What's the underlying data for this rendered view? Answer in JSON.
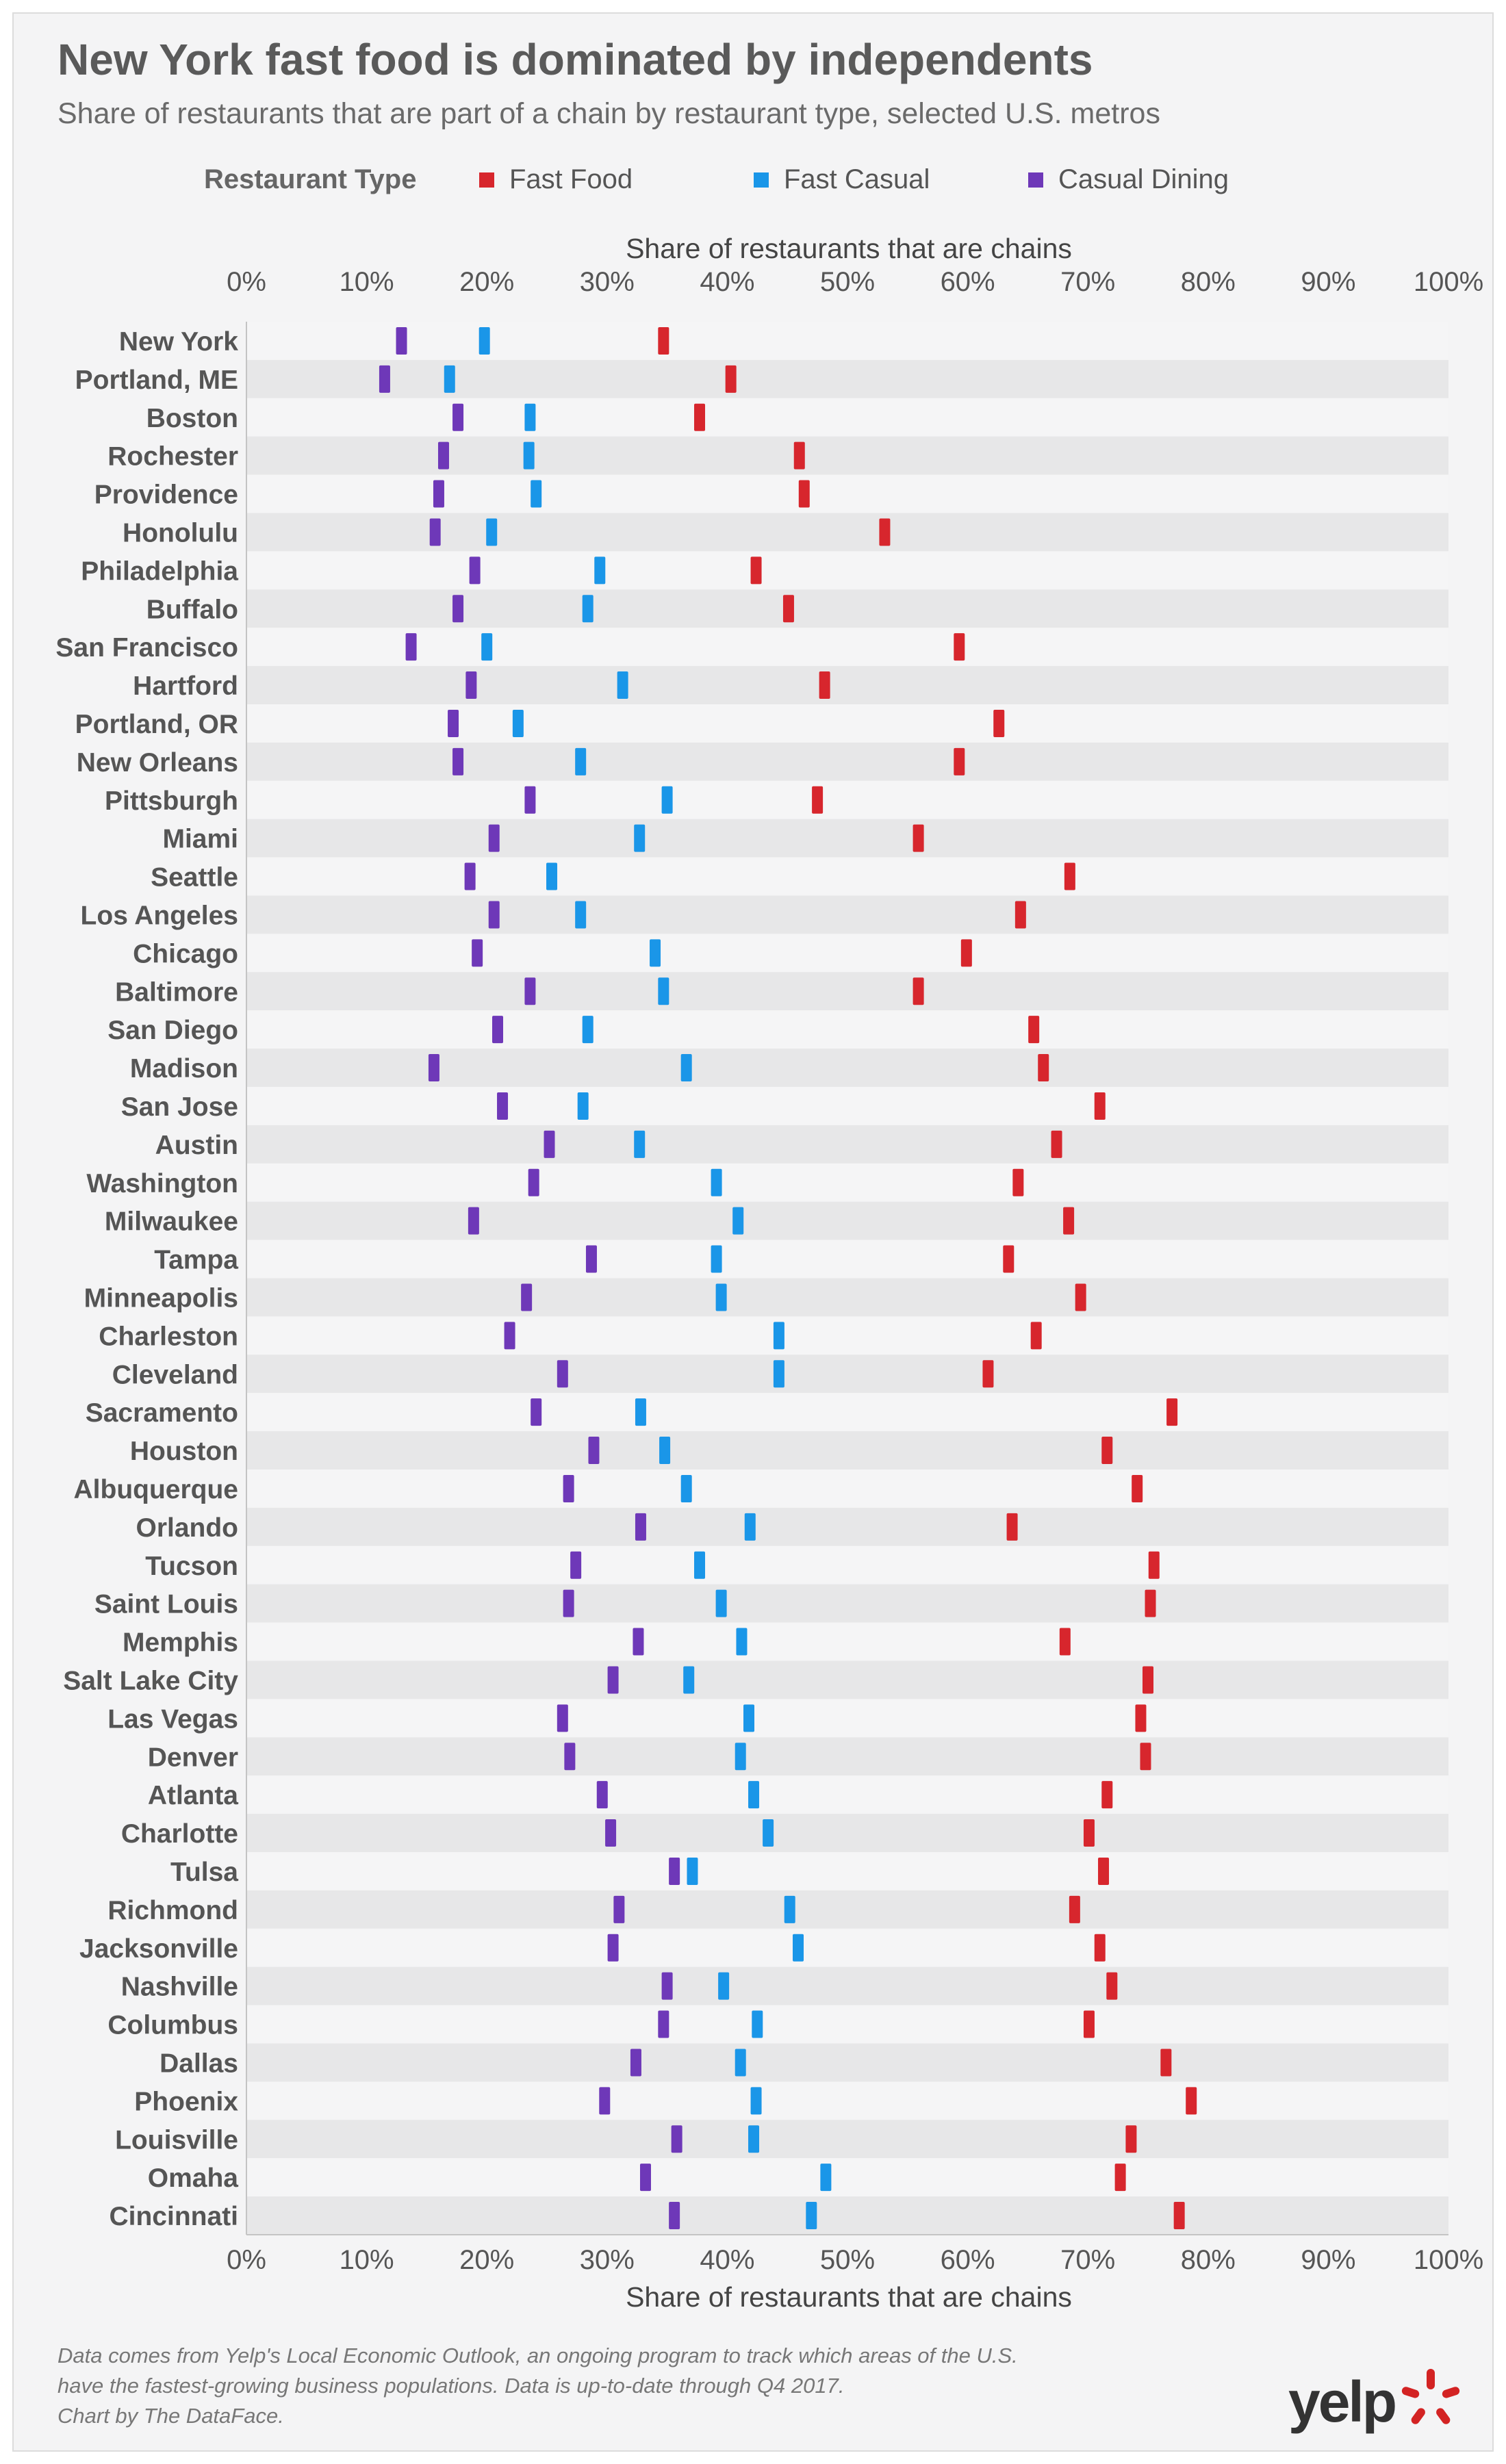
{
  "title": "New York fast food is dominated by independents",
  "subtitle": "Share of restaurants that are part of a chain by restaurant type, selected U.S. metros",
  "legend": {
    "title": "Restaurant Type",
    "items": [
      {
        "label": "Fast Food",
        "color": "#d7262d"
      },
      {
        "label": "Fast Casual",
        "color": "#1a96e8"
      },
      {
        "label": "Casual Dining",
        "color": "#6e38b8"
      }
    ]
  },
  "axis_title_top": "Share of restaurants that are chains",
  "axis_title_bottom": "Share of restaurants that are chains",
  "footnote": [
    "Data comes from Yelp's Local Economic Outlook, an ongoing program to track which areas of the U.S.",
    "have the fastest-growing business populations. Data is up-to-date through Q4 2017.",
    "Chart by The DataFace."
  ],
  "logo_text": "yelp",
  "chart_data": {
    "type": "scatter",
    "xlabel": "Share of restaurants that are chains",
    "xlim": [
      0,
      100
    ],
    "x_ticks": [
      "0%",
      "10%",
      "20%",
      "30%",
      "40%",
      "50%",
      "60%",
      "70%",
      "80%",
      "90%",
      "100%"
    ],
    "grid": "alternating row bands",
    "legend_position": "top",
    "categories": [
      "New York",
      "Portland, ME",
      "Boston",
      "Rochester",
      "Providence",
      "Honolulu",
      "Philadelphia",
      "Buffalo",
      "San Francisco",
      "Hartford",
      "Portland, OR",
      "New Orleans",
      "Pittsburgh",
      "Miami",
      "Seattle",
      "Los Angeles",
      "Chicago",
      "Baltimore",
      "San Diego",
      "Madison",
      "San Jose",
      "Austin",
      "Washington",
      "Milwaukee",
      "Tampa",
      "Minneapolis",
      "Charleston",
      "Cleveland",
      "Sacramento",
      "Houston",
      "Albuquerque",
      "Orlando",
      "Tucson",
      "Saint Louis",
      "Memphis",
      "Salt Lake City",
      "Las Vegas",
      "Denver",
      "Atlanta",
      "Charlotte",
      "Tulsa",
      "Richmond",
      "Jacksonville",
      "Nashville",
      "Columbus",
      "Dallas",
      "Phoenix",
      "Louisville",
      "Omaha",
      "Cincinnati"
    ],
    "series": [
      {
        "name": "Fast Food",
        "color": "#d7262d",
        "values": [
          34.7,
          40.3,
          37.7,
          46.0,
          46.4,
          53.1,
          42.4,
          45.1,
          59.3,
          48.1,
          62.6,
          59.3,
          47.5,
          55.9,
          68.5,
          64.4,
          59.9,
          55.9,
          65.5,
          66.3,
          71.0,
          67.4,
          64.2,
          68.4,
          63.4,
          69.4,
          65.7,
          61.7,
          77.0,
          71.6,
          74.1,
          63.7,
          75.5,
          75.2,
          68.1,
          75.0,
          74.4,
          74.8,
          71.6,
          70.1,
          71.3,
          68.9,
          71.0,
          72.0,
          70.1,
          76.5,
          78.6,
          73.6,
          72.7,
          77.6
        ]
      },
      {
        "name": "Fast Casual",
        "color": "#1a96e8",
        "values": [
          19.8,
          16.9,
          23.6,
          23.5,
          24.1,
          20.4,
          29.4,
          28.4,
          20.0,
          31.3,
          22.6,
          27.8,
          35.0,
          32.7,
          25.4,
          27.8,
          34.0,
          34.7,
          28.4,
          36.6,
          28.0,
          32.7,
          39.1,
          40.9,
          39.1,
          39.5,
          44.3,
          44.3,
          32.8,
          34.8,
          36.6,
          41.9,
          37.7,
          39.5,
          41.2,
          36.8,
          41.8,
          41.1,
          42.2,
          43.4,
          37.1,
          45.2,
          45.9,
          39.7,
          42.5,
          41.1,
          42.4,
          42.2,
          48.2,
          47.0
        ]
      },
      {
        "name": "Casual Dining",
        "color": "#6e38b8",
        "values": [
          12.9,
          11.5,
          17.6,
          16.4,
          16.0,
          15.7,
          19.0,
          17.6,
          13.7,
          18.7,
          17.2,
          17.6,
          23.6,
          20.6,
          18.6,
          20.6,
          19.2,
          23.6,
          20.9,
          15.6,
          21.3,
          25.2,
          23.9,
          18.9,
          28.7,
          23.3,
          21.9,
          26.3,
          24.1,
          28.9,
          26.8,
          32.8,
          27.4,
          26.8,
          32.6,
          30.5,
          26.3,
          26.9,
          29.6,
          30.3,
          35.6,
          31.0,
          30.5,
          35.0,
          34.7,
          32.4,
          29.8,
          35.8,
          33.2,
          35.6
        ]
      }
    ]
  }
}
